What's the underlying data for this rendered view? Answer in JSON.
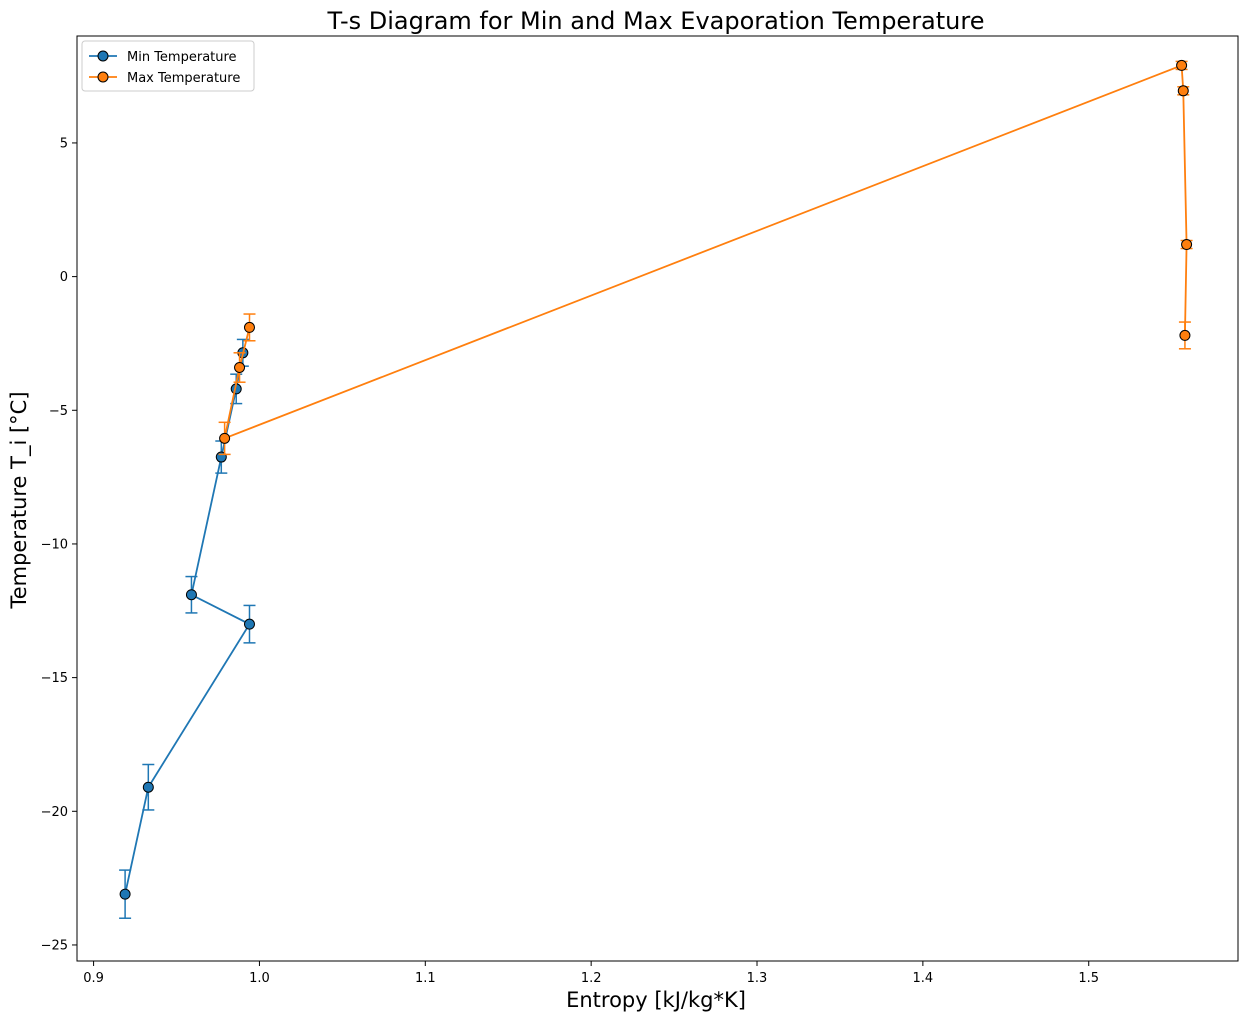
{
  "chart_data": {
    "type": "line",
    "title": "T-s Diagram for Min and Max Evaporation Temperature",
    "xlabel": "Entropy [kJ/kg*K]",
    "ylabel": "Temperature T_i [°C]",
    "xlim": [
      0.89,
      1.59
    ],
    "ylim": [
      -25.6,
      9.0
    ],
    "xticks": [
      0.9,
      1.0,
      1.1,
      1.2,
      1.3,
      1.4,
      1.5
    ],
    "xtick_labels": [
      "0.9",
      "1.0",
      "1.1",
      "1.2",
      "1.3",
      "1.4",
      "1.5"
    ],
    "yticks": [
      -25,
      -20,
      -15,
      -10,
      -5,
      0,
      5
    ],
    "ytick_labels": [
      "−25",
      "−20",
      "−15",
      "−10",
      "−5",
      "0",
      "5"
    ],
    "grid": false,
    "legend_position": "top-left",
    "series": [
      {
        "name": "Min Temperature",
        "color": "#1f77b4",
        "x": [
          0.919,
          0.933,
          0.994,
          0.959,
          0.977,
          0.986,
          0.99
        ],
        "y": [
          -23.1,
          -19.1,
          -13.0,
          -11.9,
          -6.75,
          -4.2,
          -2.85
        ],
        "yerr": [
          0.9,
          0.85,
          0.7,
          0.68,
          0.6,
          0.55,
          0.5
        ]
      },
      {
        "name": "Max Temperature",
        "color": "#ff7f0e",
        "x": [
          0.994,
          0.988,
          0.979,
          1.556,
          1.557,
          1.559,
          1.558
        ],
        "y": [
          -1.9,
          -3.4,
          -6.05,
          7.9,
          6.95,
          1.2,
          -2.2
        ],
        "yerr": [
          0.5,
          0.55,
          0.6,
          0.15,
          0.15,
          0.15,
          0.5
        ]
      }
    ]
  }
}
